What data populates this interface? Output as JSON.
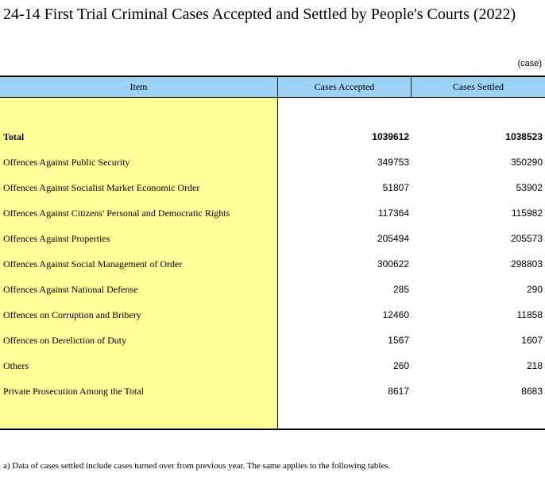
{
  "title": "24-14  First Trial Criminal Cases Accepted and Settled by People's Courts (2022)",
  "unit": "(case)",
  "table": {
    "headers": {
      "item": "Item",
      "accepted": "Cases Accepted",
      "settled": "Cases Settled"
    },
    "rows": [
      {
        "item": "Total",
        "accepted": "1039612",
        "settled": "1038523",
        "bold": true
      },
      {
        "item": "Offences Against Public Security",
        "accepted": "349753",
        "settled": "350290"
      },
      {
        "item": "Offences Against Socialist Market Economic Order",
        "accepted": "51807",
        "settled": "53902"
      },
      {
        "item": "Offences Against Citizens' Personal and Democratic Rights",
        "accepted": "117364",
        "settled": "115982"
      },
      {
        "item": "Offences Against Properties",
        "accepted": "205494",
        "settled": "205573"
      },
      {
        "item": "Offences Against Social Management of Order",
        "accepted": "300622",
        "settled": "298803"
      },
      {
        "item": "Offences Against National Defense",
        "accepted": "285",
        "settled": "290"
      },
      {
        "item": "Offences on Corruption and Bribery",
        "accepted": "12460",
        "settled": "11858"
      },
      {
        "item": "Offences on Dereliction of Duty",
        "accepted": "1567",
        "settled": "1607"
      },
      {
        "item": "Others",
        "accepted": "260",
        "settled": "218"
      },
      {
        "item": "Private Prosecution Among the Total",
        "accepted": "8617",
        "settled": "8683"
      }
    ]
  },
  "footnote": "a) Data of cases settled include cases turned over from previous year. The same applies to the following tables."
}
